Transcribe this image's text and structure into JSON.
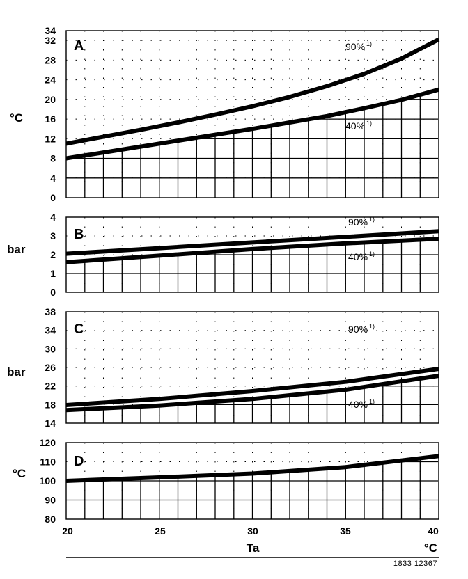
{
  "chart_data": [
    {
      "type": "line",
      "panel_label": "A",
      "ylabel": "°C",
      "ylim": [
        0,
        34
      ],
      "yticks": [
        0,
        4,
        8,
        12,
        16,
        20,
        24,
        28,
        32,
        34
      ],
      "x": [
        20,
        22,
        24,
        26,
        28,
        30,
        32,
        34,
        36,
        38,
        40
      ],
      "series": [
        {
          "name": "90%",
          "values": [
            11,
            12.4,
            13.8,
            15.3,
            16.9,
            18.6,
            20.5,
            22.7,
            25.2,
            28.3,
            32.2
          ]
        },
        {
          "name": "40%",
          "values": [
            8,
            9.2,
            10.4,
            11.6,
            12.8,
            14.0,
            15.3,
            16.6,
            18.2,
            19.9,
            22.0
          ]
        }
      ],
      "annotations": [
        {
          "text": "90%",
          "sup": "1)"
        },
        {
          "text": "40%",
          "sup": "1)"
        }
      ]
    },
    {
      "type": "line",
      "panel_label": "B",
      "ylabel": "bar",
      "ylim": [
        0,
        4
      ],
      "yticks": [
        0,
        1,
        2,
        3,
        4
      ],
      "x": [
        20,
        25,
        30,
        35,
        40
      ],
      "series": [
        {
          "name": "90%",
          "values": [
            2.05,
            2.35,
            2.65,
            2.95,
            3.25
          ]
        },
        {
          "name": "40%",
          "values": [
            1.6,
            1.95,
            2.3,
            2.6,
            2.85
          ]
        }
      ],
      "annotations": [
        {
          "text": "90%",
          "sup": "1)"
        },
        {
          "text": "40%",
          "sup": "1)"
        }
      ]
    },
    {
      "type": "line",
      "panel_label": "C",
      "ylabel": "bar",
      "ylim": [
        14,
        38
      ],
      "yticks": [
        14,
        18,
        22,
        26,
        30,
        34,
        38
      ],
      "x": [
        20,
        25,
        30,
        35,
        40
      ],
      "series": [
        {
          "name": "90%",
          "values": [
            17.9,
            19.2,
            20.9,
            22.9,
            25.7
          ]
        },
        {
          "name": "40%",
          "values": [
            16.8,
            17.8,
            19.2,
            21.2,
            24.2
          ]
        }
      ],
      "annotations": [
        {
          "text": "90%",
          "sup": "1)"
        },
        {
          "text": "40%",
          "sup": "1)"
        }
      ]
    },
    {
      "type": "line",
      "panel_label": "D",
      "ylabel": "°C",
      "ylim": [
        80,
        120
      ],
      "yticks": [
        80,
        90,
        100,
        110,
        120
      ],
      "x": [
        20,
        25,
        30,
        35,
        40
      ],
      "series": [
        {
          "values": [
            100,
            101.8,
            103.8,
            107.2,
            113.0
          ]
        }
      ]
    }
  ],
  "x_axis": {
    "ticks": [
      20,
      25,
      30,
      35,
      40
    ],
    "label": "Ta",
    "unit": "°C"
  },
  "figure_code": "1833 12367"
}
